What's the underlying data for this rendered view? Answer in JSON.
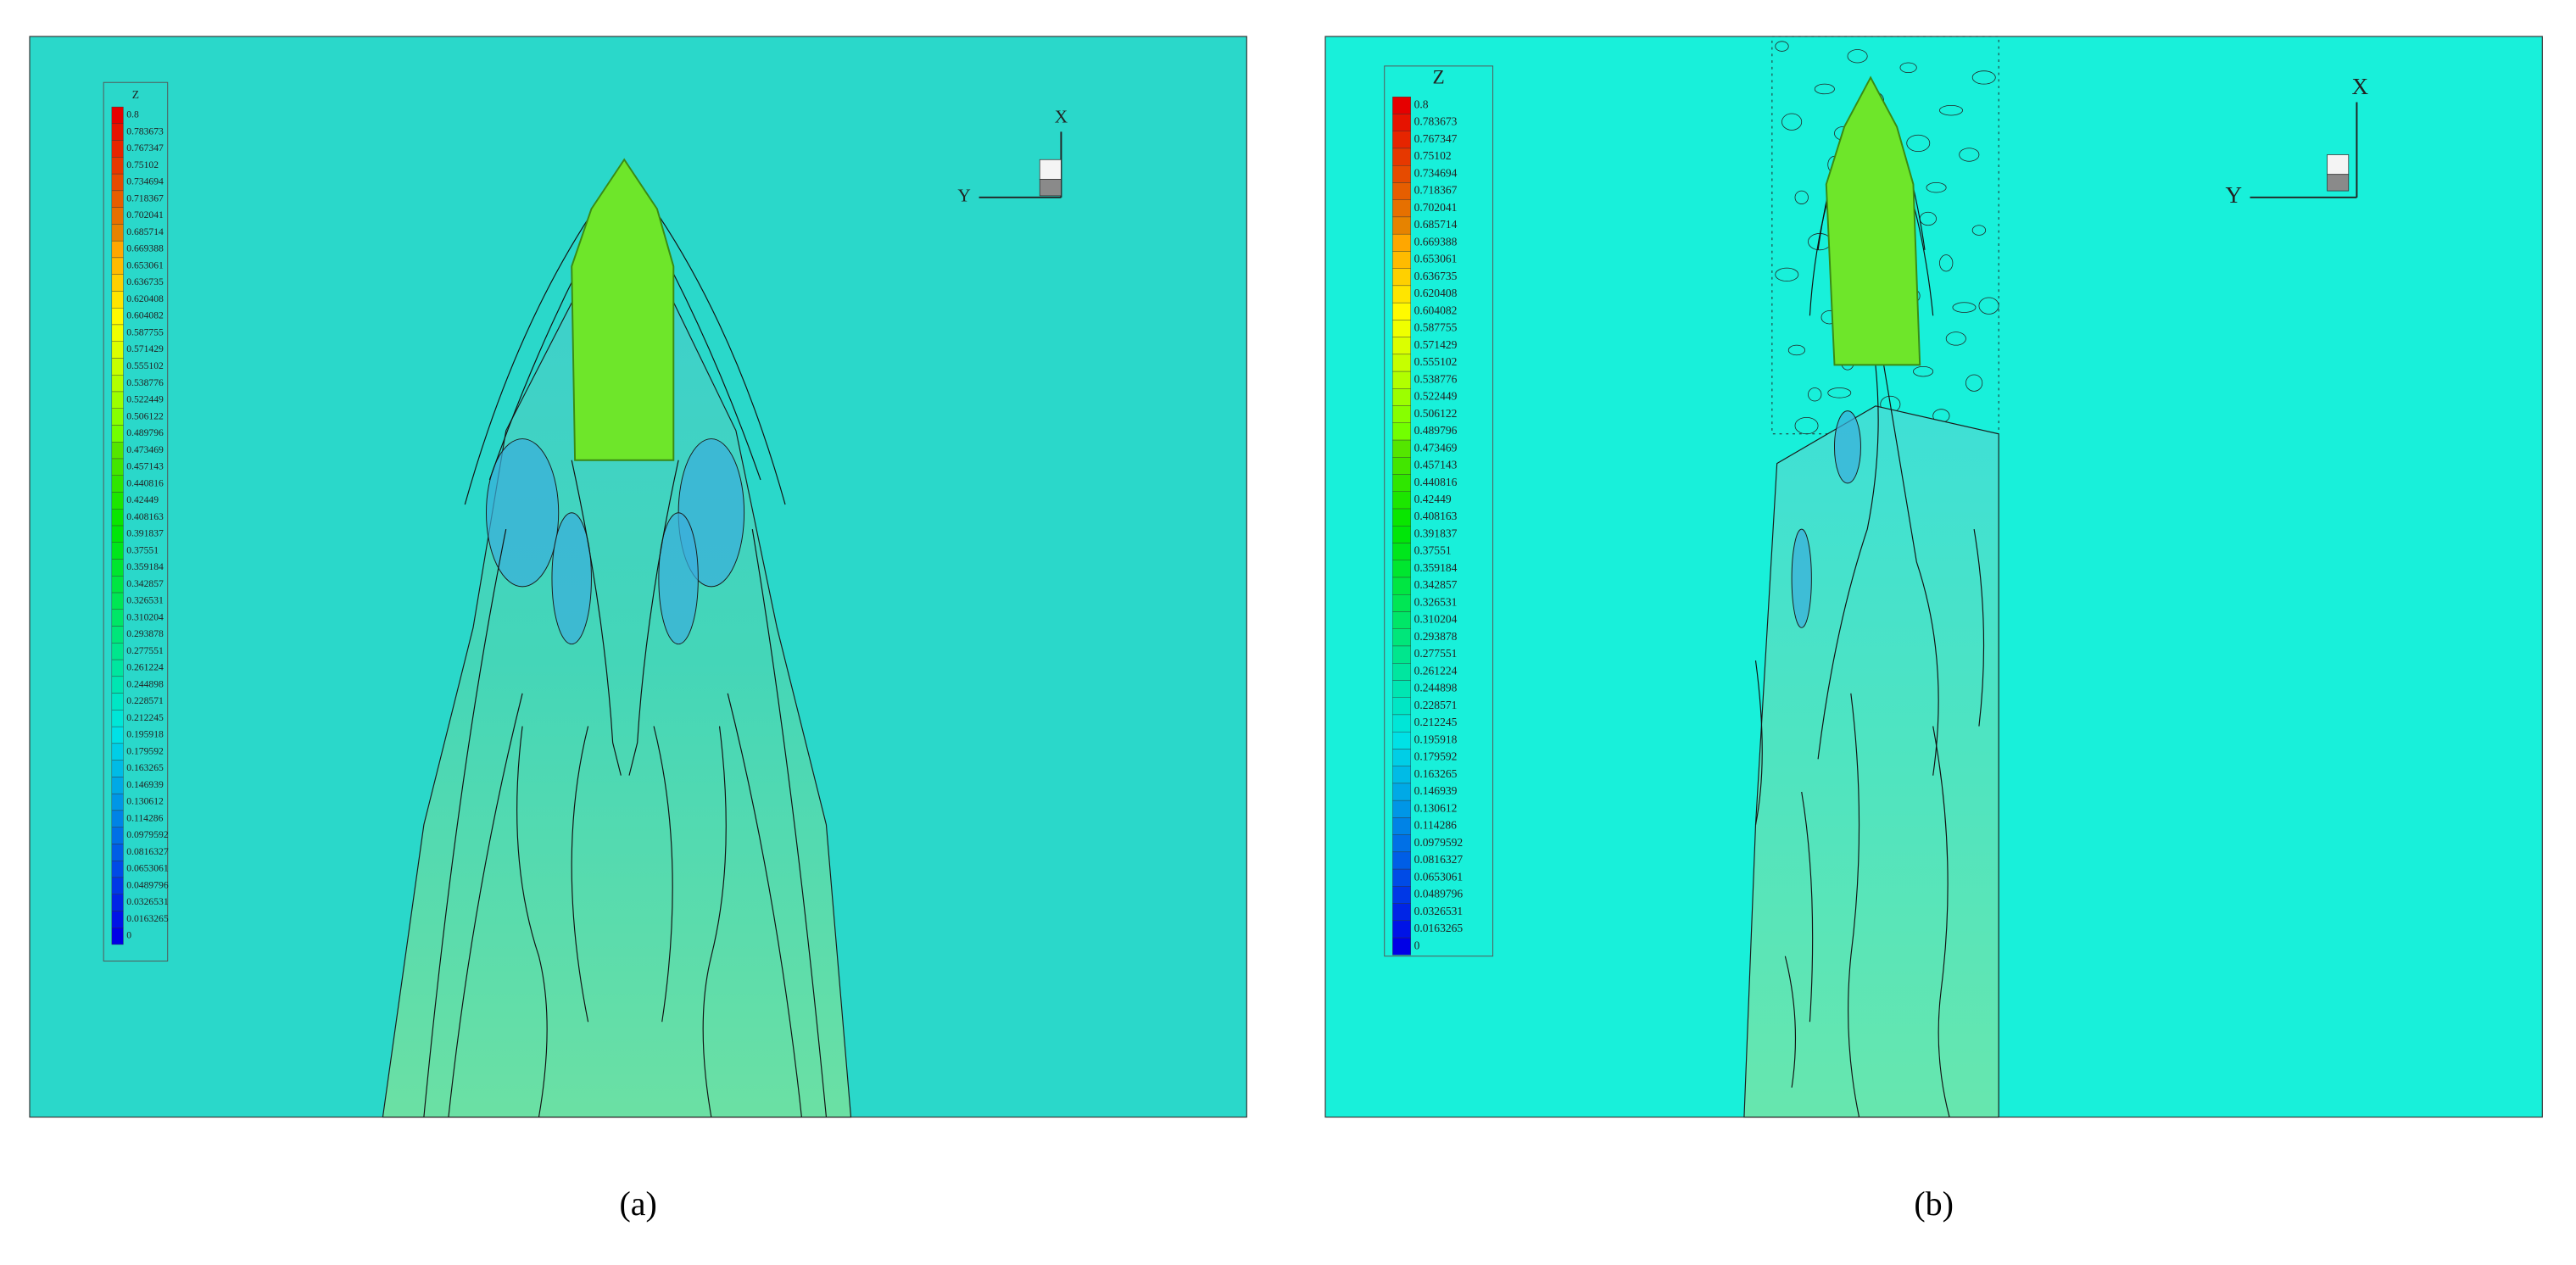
{
  "panels": [
    {
      "caption": "(a)",
      "axes": {
        "x": "X",
        "y": "Y"
      },
      "legend": {
        "title": "Z",
        "levels": [
          "0.8",
          "0.783673",
          "0.767347",
          "0.75102",
          "0.734694",
          "0.718367",
          "0.702041",
          "0.685714",
          "0.669388",
          "0.653061",
          "0.636735",
          "0.620408",
          "0.604082",
          "0.587755",
          "0.571429",
          "0.555102",
          "0.538776",
          "0.522449",
          "0.506122",
          "0.489796",
          "0.473469",
          "0.457143",
          "0.440816",
          "0.42449",
          "0.408163",
          "0.391837",
          "0.37551",
          "0.359184",
          "0.342857",
          "0.326531",
          "0.310204",
          "0.293878",
          "0.277551",
          "0.261224",
          "0.244898",
          "0.228571",
          "0.212245",
          "0.195918",
          "0.179592",
          "0.163265",
          "0.146939",
          "0.130612",
          "0.114286",
          "0.0979592",
          "0.0816327",
          "0.0653061",
          "0.0489796",
          "0.0326531",
          "0.0163265",
          "0"
        ]
      }
    },
    {
      "caption": "(b)",
      "axes": {
        "x": "X",
        "y": "Y"
      },
      "legend": {
        "title": "Z",
        "levels": [
          "0.8",
          "0.783673",
          "0.767347",
          "0.75102",
          "0.734694",
          "0.718367",
          "0.702041",
          "0.685714",
          "0.669388",
          "0.653061",
          "0.636735",
          "0.620408",
          "0.604082",
          "0.587755",
          "0.571429",
          "0.555102",
          "0.538776",
          "0.522449",
          "0.506122",
          "0.489796",
          "0.473469",
          "0.457143",
          "0.440816",
          "0.42449",
          "0.408163",
          "0.391837",
          "0.37551",
          "0.359184",
          "0.342857",
          "0.326531",
          "0.310204",
          "0.293878",
          "0.277551",
          "0.261224",
          "0.244898",
          "0.228571",
          "0.212245",
          "0.195918",
          "0.179592",
          "0.163265",
          "0.146939",
          "0.130612",
          "0.114286",
          "0.0979592",
          "0.0816327",
          "0.0653061",
          "0.0489796",
          "0.0326531",
          "0.0163265",
          "0"
        ]
      }
    }
  ]
}
